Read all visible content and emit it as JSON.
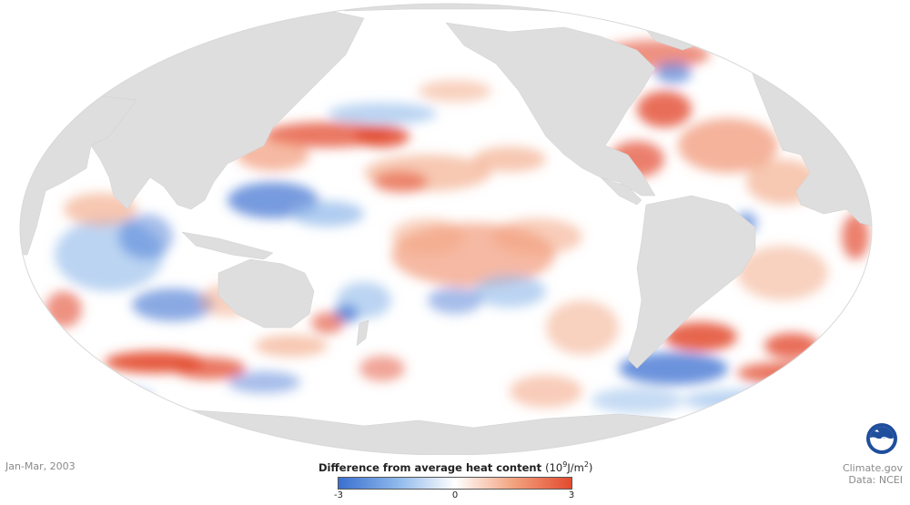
{
  "map": {
    "period_label": "Jan-Mar, 2003",
    "projection": "Mollweide (Pacific-centered)",
    "colors": {
      "land": "#dedede",
      "ocean_neutral": "#ffffff",
      "negative": "#3a6fd0",
      "positive": "#e34a2f"
    }
  },
  "legend": {
    "title": "Difference from average heat content",
    "unit_base": "(10",
    "unit_exp": "9",
    "unit_mid": "J/m",
    "unit_exp2": "2",
    "unit_end": ")",
    "tick_min": "-3",
    "tick_mid": "0",
    "tick_max": "3",
    "range": [
      -3,
      3
    ]
  },
  "credit": {
    "source": "Climate.gov",
    "data": "Data: NCEI",
    "logo": "noaa-logo-icon"
  }
}
